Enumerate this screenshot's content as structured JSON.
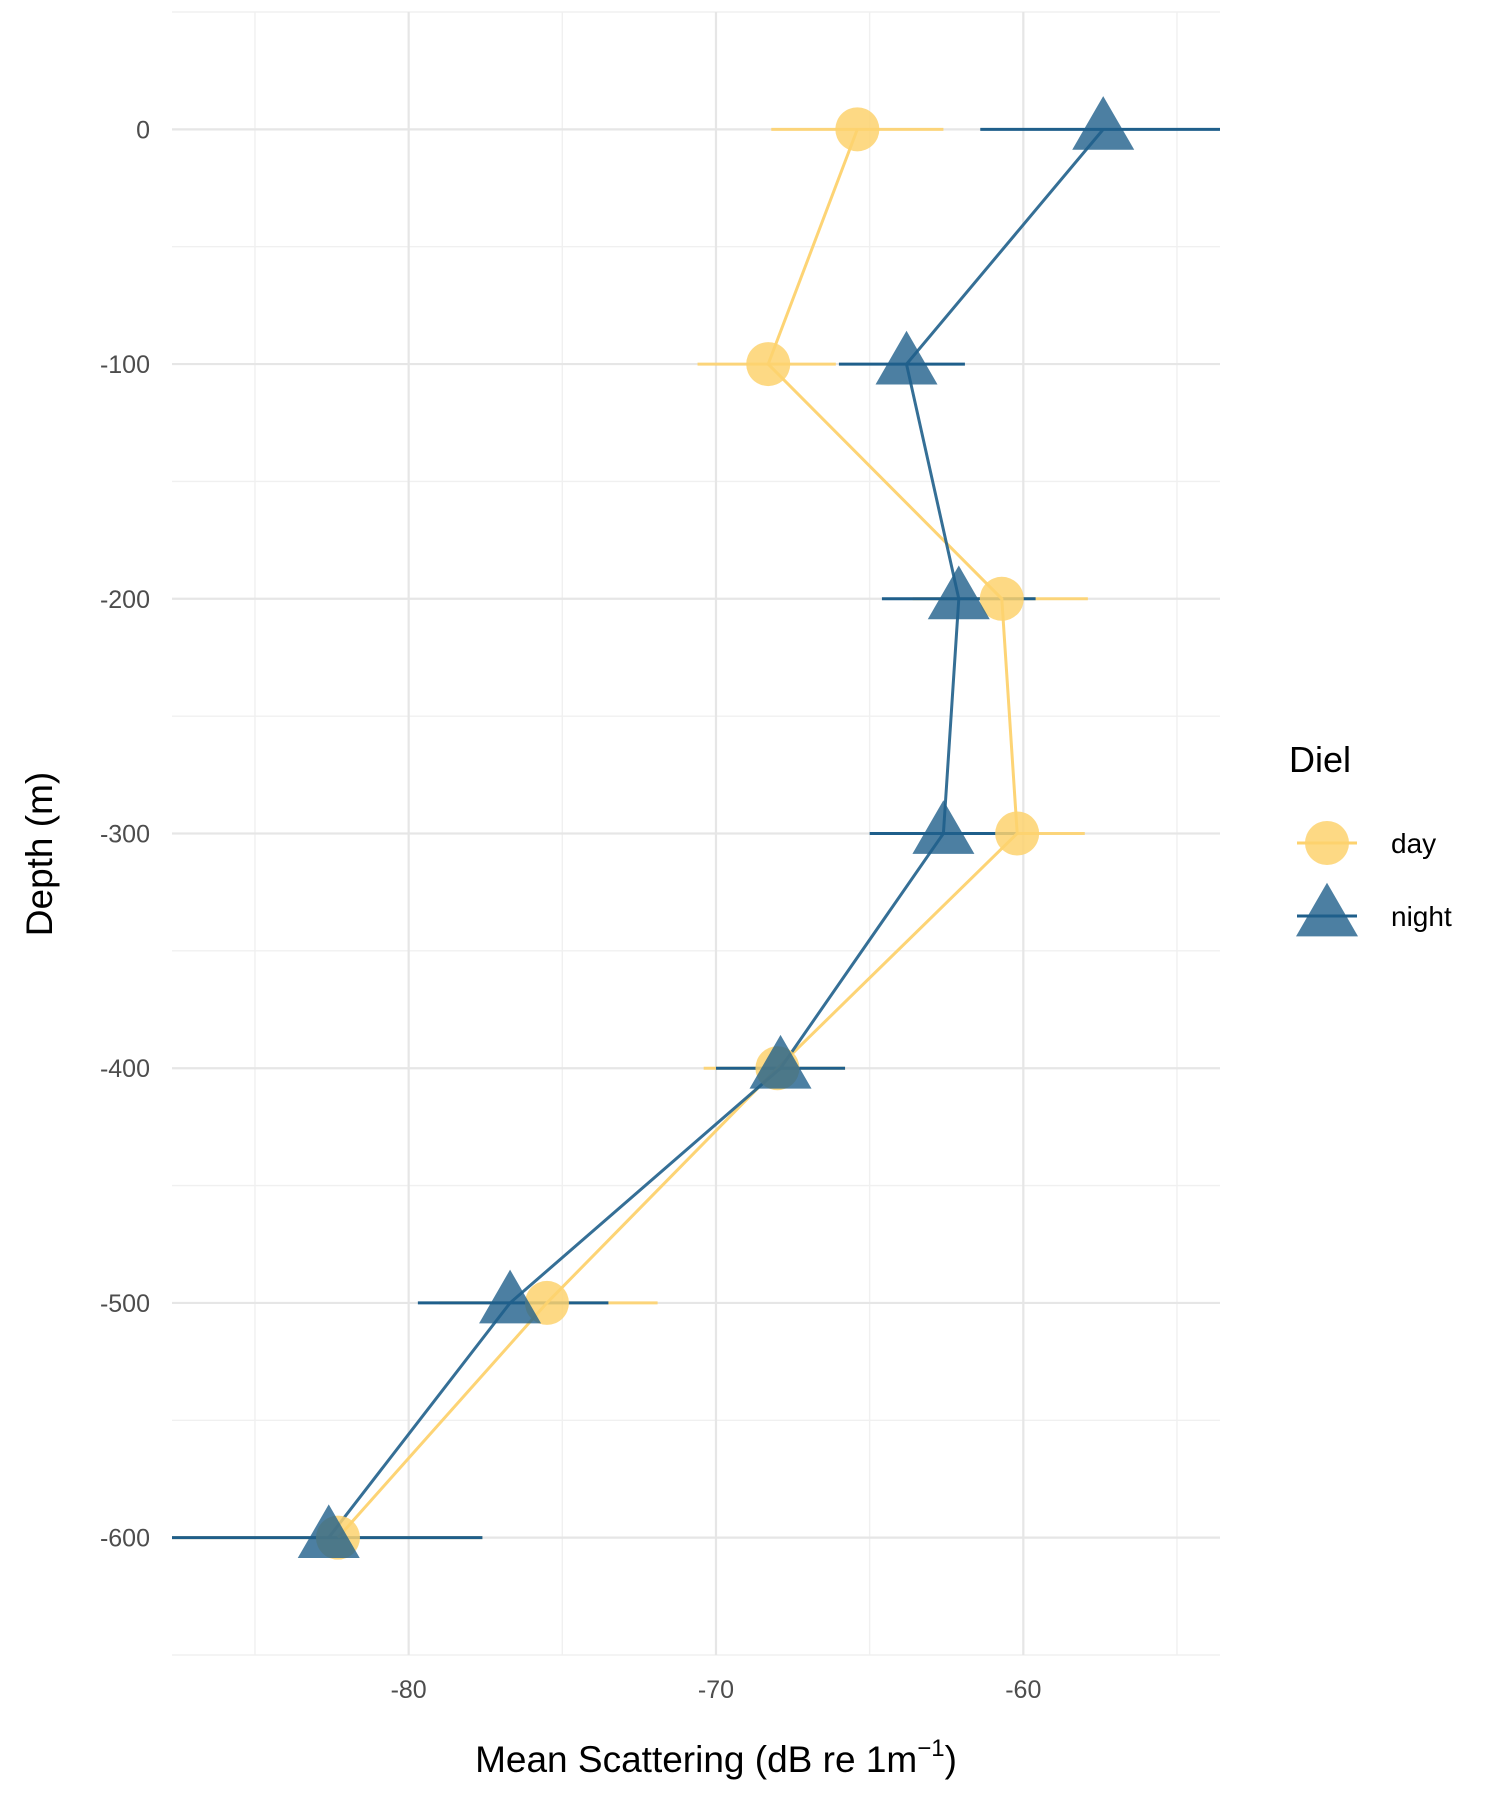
{
  "chart_data": {
    "type": "scatter",
    "xlabel": "Mean Scattering  (dB re 1m",
    "xlabel_superscript": "−1",
    "xlabel_suffix": ")",
    "ylabel": "Depth (m)",
    "xlim": [
      -87.7,
      -53.6
    ],
    "ylim": [
      -650,
      50
    ],
    "x_ticks": [
      -80,
      -70,
      -60
    ],
    "x_tick_labels": [
      "-80",
      "-70",
      "-60"
    ],
    "x_minor_ticks": [
      -85,
      -75,
      -65,
      -55
    ],
    "y_ticks": [
      0,
      -100,
      -200,
      -300,
      -400,
      -500,
      -600
    ],
    "y_tick_labels": [
      "0",
      "-100",
      "-200",
      "-300",
      "-400",
      "-500",
      "-600"
    ],
    "y_minor_ticks": [
      50,
      -50,
      -150,
      -250,
      -350,
      -450,
      -550,
      -650
    ],
    "grid": true,
    "legend": {
      "title": "Diel",
      "placement": "right"
    },
    "series": [
      {
        "name": "day",
        "marker": "circle",
        "color": "#FDD26E",
        "points": [
          {
            "depth": 0,
            "x": -65.4,
            "xmin": -68.2,
            "xmax": -62.6
          },
          {
            "depth": -100,
            "x": -68.3,
            "xmin": -70.6,
            "xmax": -66.1
          },
          {
            "depth": -200,
            "x": -60.7,
            "xmin": -63.6,
            "xmax": -57.9
          },
          {
            "depth": -300,
            "x": -60.2,
            "xmin": -62.7,
            "xmax": -58.0
          },
          {
            "depth": -400,
            "x": -68.0,
            "xmin": -70.4,
            "xmax": -65.8
          },
          {
            "depth": -500,
            "x": -75.5,
            "xmin": -79.0,
            "xmax": -71.9
          },
          {
            "depth": -600,
            "x": -82.3,
            "xmin": -87.7,
            "xmax": -77.6
          }
        ]
      },
      {
        "name": "night",
        "marker": "triangle",
        "color": "#1F5F8B",
        "points": [
          {
            "depth": 0,
            "x": -57.4,
            "xmin": -61.4,
            "xmax": -53.6
          },
          {
            "depth": -100,
            "x": -63.8,
            "xmin": -66.0,
            "xmax": -61.9
          },
          {
            "depth": -200,
            "x": -62.1,
            "xmin": -64.6,
            "xmax": -59.6
          },
          {
            "depth": -300,
            "x": -62.6,
            "xmin": -65.0,
            "xmax": -60.2
          },
          {
            "depth": -400,
            "x": -67.9,
            "xmin": -70.0,
            "xmax": -65.8
          },
          {
            "depth": -500,
            "x": -76.7,
            "xmin": -79.7,
            "xmax": -73.5
          },
          {
            "depth": -600,
            "x": -82.6,
            "xmin": -87.7,
            "xmax": -77.6
          }
        ]
      }
    ]
  }
}
